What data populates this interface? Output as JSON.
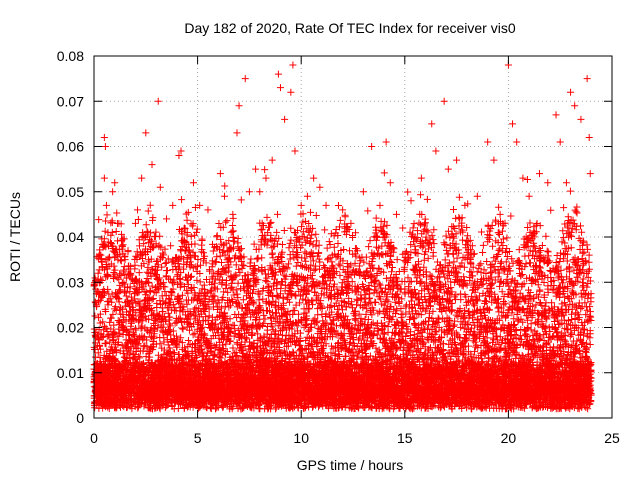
{
  "chart_data": {
    "type": "scatter",
    "title": "Day 182 of 2020, Rate Of TEC Index for receiver vis0",
    "xlabel": "GPS time / hours",
    "ylabel": "ROTI / TECUs",
    "xlim": [
      0,
      25
    ],
    "ylim": [
      0,
      0.08
    ],
    "xticks": [
      0,
      5,
      10,
      15,
      20,
      25
    ],
    "yticks": [
      0,
      0.01,
      0.02,
      0.03,
      0.04,
      0.05,
      0.06,
      0.07,
      0.08
    ],
    "xtick_labels": [
      "0",
      "5",
      "10",
      "15",
      "20",
      "25"
    ],
    "ytick_labels": [
      "0",
      "0.01",
      "0.02",
      "0.03",
      "0.04",
      "0.05",
      "0.06",
      "0.07",
      "0.08"
    ],
    "grid": true,
    "legend": "none",
    "marker": "+",
    "series_color": "#ff0000",
    "time_range_hours": [
      0,
      24
    ],
    "points": [
      [
        0.1,
        0.012
      ],
      [
        0.2,
        0.032
      ],
      [
        0.3,
        0.021
      ],
      [
        0.35,
        0.027
      ],
      [
        0.5,
        0.062
      ],
      [
        0.55,
        0.06
      ],
      [
        0.5,
        0.053
      ],
      [
        0.6,
        0.047
      ],
      [
        0.7,
        0.038
      ],
      [
        0.9,
        0.05
      ],
      [
        1.0,
        0.052
      ],
      [
        1.2,
        0.043
      ],
      [
        1.5,
        0.035
      ],
      [
        2.0,
        0.043
      ],
      [
        2.1,
        0.046
      ],
      [
        2.3,
        0.053
      ],
      [
        2.5,
        0.063
      ],
      [
        2.8,
        0.056
      ],
      [
        3.1,
        0.07
      ],
      [
        3.2,
        0.051
      ],
      [
        3.5,
        0.044
      ],
      [
        3.8,
        0.047
      ],
      [
        4.1,
        0.058
      ],
      [
        4.2,
        0.059
      ],
      [
        4.5,
        0.041
      ],
      [
        4.8,
        0.052
      ],
      [
        5.1,
        0.047
      ],
      [
        5.5,
        0.046
      ],
      [
        6.1,
        0.054
      ],
      [
        6.3,
        0.049
      ],
      [
        6.7,
        0.045
      ],
      [
        6.9,
        0.063
      ],
      [
        7.0,
        0.069
      ],
      [
        7.3,
        0.075
      ],
      [
        7.5,
        0.05
      ],
      [
        7.8,
        0.055
      ],
      [
        8.0,
        0.05
      ],
      [
        8.3,
        0.053
      ],
      [
        8.6,
        0.057
      ],
      [
        8.9,
        0.076
      ],
      [
        9.0,
        0.073
      ],
      [
        9.2,
        0.066
      ],
      [
        9.5,
        0.072
      ],
      [
        9.6,
        0.078
      ],
      [
        9.7,
        0.059
      ],
      [
        10.0,
        0.047
      ],
      [
        10.3,
        0.049
      ],
      [
        10.6,
        0.053
      ],
      [
        10.9,
        0.051
      ],
      [
        11.2,
        0.047
      ],
      [
        11.5,
        0.036
      ],
      [
        12.0,
        0.046
      ],
      [
        12.4,
        0.043
      ],
      [
        13.0,
        0.05
      ],
      [
        13.4,
        0.06
      ],
      [
        13.8,
        0.047
      ],
      [
        14.1,
        0.061
      ],
      [
        14.3,
        0.052
      ],
      [
        14.6,
        0.045
      ],
      [
        14.9,
        0.042
      ],
      [
        15.3,
        0.048
      ],
      [
        15.8,
        0.053
      ],
      [
        16.3,
        0.065
      ],
      [
        16.5,
        0.059
      ],
      [
        16.9,
        0.07
      ],
      [
        17.1,
        0.055
      ],
      [
        17.5,
        0.057
      ],
      [
        17.9,
        0.047
      ],
      [
        18.5,
        0.049
      ],
      [
        19.0,
        0.061
      ],
      [
        19.3,
        0.057
      ],
      [
        19.6,
        0.045
      ],
      [
        20.0,
        0.078
      ],
      [
        20.2,
        0.065
      ],
      [
        20.4,
        0.061
      ],
      [
        20.7,
        0.053
      ],
      [
        21.0,
        0.049
      ],
      [
        21.5,
        0.054
      ],
      [
        21.9,
        0.052
      ],
      [
        22.3,
        0.067
      ],
      [
        22.5,
        0.061
      ],
      [
        22.8,
        0.052
      ],
      [
        23.0,
        0.072
      ],
      [
        23.2,
        0.069
      ],
      [
        23.5,
        0.066
      ],
      [
        23.8,
        0.075
      ],
      [
        23.9,
        0.062
      ],
      [
        23.95,
        0.054
      ]
    ]
  }
}
